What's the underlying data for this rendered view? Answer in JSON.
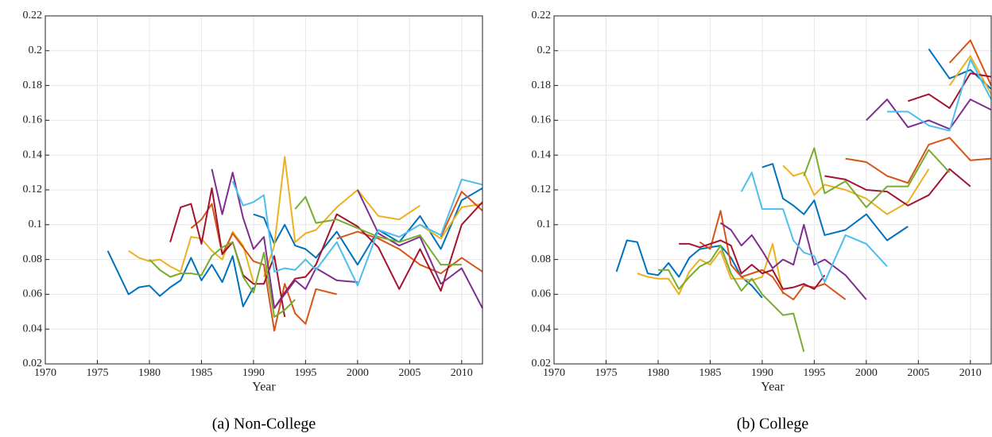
{
  "chart_data": [
    {
      "type": "line",
      "caption": "(a) Non-College",
      "xlabel": "Year",
      "xlim": [
        1970,
        2012
      ],
      "ylim": [
        0.02,
        0.22
      ],
      "xticks": [
        1970,
        1975,
        1980,
        1985,
        1990,
        1995,
        2000,
        2005,
        2010
      ],
      "yticks": [
        0.02,
        0.04,
        0.06,
        0.08,
        0.1,
        0.12,
        0.14,
        0.16,
        0.18,
        0.2,
        0.22
      ],
      "grid": true,
      "series": [
        {
          "color": "#0072BD",
          "x": [
            1976,
            1978,
            1979,
            1980,
            1981,
            1982,
            1983,
            1984,
            1985,
            1986,
            1987,
            1988,
            1989,
            1990
          ],
          "values": [
            0.085,
            0.06,
            0.064,
            0.065,
            0.059,
            0.064,
            0.068,
            0.081,
            0.068,
            0.077,
            0.067,
            0.082,
            0.053,
            0.064
          ]
        },
        {
          "color": "#0072BD",
          "x": [
            1990,
            1991,
            1992,
            1993,
            1994,
            1995,
            1996,
            1998,
            2000,
            2002,
            2004,
            2006,
            2008,
            2010,
            2012
          ],
          "values": [
            0.106,
            0.104,
            0.089,
            0.1,
            0.088,
            0.086,
            0.081,
            0.096,
            0.077,
            0.097,
            0.09,
            0.105,
            0.086,
            0.114,
            0.121
          ]
        },
        {
          "color": "#EDB120",
          "x": [
            1978,
            1979,
            1980,
            1981,
            1982,
            1983,
            1984,
            1985,
            1986,
            1987,
            1988,
            1989,
            1990
          ],
          "values": [
            0.085,
            0.081,
            0.079,
            0.08,
            0.076,
            0.073,
            0.093,
            0.092,
            0.085,
            0.08,
            0.096,
            0.088,
            0.067
          ]
        },
        {
          "color": "#EDB120",
          "x": [
            1991,
            1992,
            1993,
            1994,
            1995,
            1996,
            1998,
            2000,
            2002,
            2004,
            2006
          ],
          "values": [
            0.07,
            0.088,
            0.139,
            0.09,
            0.095,
            0.097,
            0.11,
            0.12,
            0.105,
            0.103,
            0.111
          ]
        },
        {
          "color": "#EDB120",
          "x": [
            2006,
            2008,
            2010,
            2012
          ],
          "values": [
            0.1,
            0.092,
            0.11,
            0.112
          ]
        },
        {
          "color": "#D95319",
          "x": [
            1984,
            1985,
            1986,
            1987,
            1988,
            1989,
            1990,
            1991,
            1992,
            1993,
            1994,
            1995,
            1996,
            1998
          ],
          "values": [
            0.098,
            0.103,
            0.112,
            0.083,
            0.095,
            0.087,
            0.079,
            0.077,
            0.039,
            0.066,
            0.049,
            0.043,
            0.063,
            0.06
          ]
        },
        {
          "color": "#D95319",
          "x": [
            1998,
            2000,
            2002,
            2004,
            2006,
            2008,
            2010,
            2012
          ],
          "values": [
            0.092,
            0.096,
            0.092,
            0.086,
            0.077,
            0.072,
            0.081,
            0.073
          ]
        },
        {
          "color": "#D95319",
          "x": [
            2008,
            2010,
            2012
          ],
          "values": [
            0.093,
            0.119,
            0.108
          ]
        },
        {
          "color": "#A2142F",
          "x": [
            1982,
            1983,
            1984,
            1985,
            1986,
            1987,
            1988,
            1989,
            1990,
            1991,
            1992,
            1993
          ],
          "values": [
            0.09,
            0.11,
            0.112,
            0.089,
            0.121,
            0.083,
            0.09,
            0.071,
            0.066,
            0.066,
            0.082,
            0.047
          ]
        },
        {
          "color": "#A2142F",
          "x": [
            1992,
            1993,
            1994,
            1995,
            1996,
            1998,
            2000,
            2002,
            2004,
            2006,
            2008,
            2010,
            2012
          ],
          "values": [
            0.052,
            0.061,
            0.069,
            0.07,
            0.077,
            0.106,
            0.099,
            0.087,
            0.063,
            0.086,
            0.062,
            0.1,
            0.113
          ]
        },
        {
          "color": "#7E2F8E",
          "x": [
            1986,
            1987,
            1988,
            1989,
            1990,
            1991,
            1992,
            1993,
            1994,
            1995,
            1996,
            1998,
            2000
          ],
          "values": [
            0.132,
            0.106,
            0.13,
            0.104,
            0.086,
            0.093,
            0.052,
            0.06,
            0.068,
            0.063,
            0.075,
            0.068,
            0.067
          ]
        },
        {
          "color": "#7E2F8E",
          "x": [
            2000,
            2002,
            2004,
            2006,
            2008,
            2010,
            2012
          ],
          "values": [
            0.12,
            0.095,
            0.088,
            0.093,
            0.066,
            0.075,
            0.052
          ]
        },
        {
          "color": "#77AC30",
          "x": [
            1980,
            1981,
            1982,
            1983,
            1984,
            1985,
            1986,
            1987,
            1988,
            1989,
            1990,
            1991,
            1992,
            1993,
            1994
          ],
          "values": [
            0.08,
            0.074,
            0.07,
            0.072,
            0.072,
            0.071,
            0.082,
            0.087,
            0.09,
            0.07,
            0.061,
            0.084,
            0.047,
            0.051,
            0.057
          ]
        },
        {
          "color": "#77AC30",
          "x": [
            1994,
            1995,
            1996,
            1998,
            2000,
            2002,
            2004,
            2006,
            2008,
            2010
          ],
          "values": [
            0.109,
            0.116,
            0.101,
            0.103,
            0.098,
            0.093,
            0.09,
            0.094,
            0.077,
            0.077
          ]
        },
        {
          "color": "#4DBEEE",
          "x": [
            1988,
            1989,
            1990,
            1991,
            1992,
            1993,
            1994,
            1995,
            1996,
            1998,
            2000,
            2002,
            2004,
            2006,
            2008,
            2010,
            2012
          ],
          "values": [
            0.125,
            0.111,
            0.113,
            0.117,
            0.073,
            0.075,
            0.074,
            0.08,
            0.074,
            0.09,
            0.065,
            0.097,
            0.093,
            0.1,
            0.094,
            0.126,
            0.123
          ]
        }
      ]
    },
    {
      "type": "line",
      "caption": "(b) College",
      "xlabel": "Year",
      "xlim": [
        1970,
        2012
      ],
      "ylim": [
        0.02,
        0.22
      ],
      "xticks": [
        1970,
        1975,
        1980,
        1985,
        1990,
        1995,
        2000,
        2005,
        2010
      ],
      "yticks": [
        0.02,
        0.04,
        0.06,
        0.08,
        0.1,
        0.12,
        0.14,
        0.16,
        0.18,
        0.2,
        0.22
      ],
      "grid": true,
      "series": [
        {
          "color": "#0072BD",
          "x": [
            1976,
            1977,
            1978,
            1979,
            1980,
            1981,
            1982,
            1983,
            1984,
            1985,
            1986,
            1987,
            1988,
            1989,
            1990
          ],
          "values": [
            0.073,
            0.091,
            0.09,
            0.072,
            0.071,
            0.078,
            0.07,
            0.081,
            0.086,
            0.087,
            0.088,
            0.081,
            0.07,
            0.065,
            0.058
          ]
        },
        {
          "color": "#0072BD",
          "x": [
            1990,
            1991,
            1992,
            1993,
            1994,
            1995,
            1996,
            1998,
            2000,
            2002,
            2004
          ],
          "values": [
            0.133,
            0.135,
            0.115,
            0.111,
            0.106,
            0.114,
            0.094,
            0.097,
            0.106,
            0.091,
            0.099
          ]
        },
        {
          "color": "#0072BD",
          "x": [
            2006,
            2008,
            2010,
            2012
          ],
          "values": [
            0.201,
            0.184,
            0.189,
            0.178
          ]
        },
        {
          "color": "#EDB120",
          "x": [
            1978,
            1979,
            1980,
            1981,
            1982,
            1983,
            1984,
            1985,
            1986,
            1987,
            1988,
            1989,
            1990,
            1991,
            1992
          ],
          "values": [
            0.072,
            0.07,
            0.069,
            0.069,
            0.06,
            0.073,
            0.08,
            0.077,
            0.085,
            0.069,
            0.069,
            0.068,
            0.07,
            0.089,
            0.06
          ]
        },
        {
          "color": "#EDB120",
          "x": [
            1992,
            1993,
            1994,
            1995,
            1996,
            1998,
            2000,
            2002,
            2004,
            2006
          ],
          "values": [
            0.134,
            0.128,
            0.13,
            0.117,
            0.123,
            0.12,
            0.115,
            0.106,
            0.113,
            0.132
          ]
        },
        {
          "color": "#EDB120",
          "x": [
            2008,
            2010,
            2012
          ],
          "values": [
            0.18,
            0.197,
            0.175
          ]
        },
        {
          "color": "#D95319",
          "x": [
            1984,
            1985,
            1986,
            1987,
            1988,
            1989,
            1990,
            1991,
            1992,
            1993,
            1994,
            1995,
            1996,
            1998
          ],
          "values": [
            0.09,
            0.086,
            0.108,
            0.077,
            0.07,
            0.072,
            0.074,
            0.07,
            0.061,
            0.057,
            0.065,
            0.064,
            0.066,
            0.057
          ]
        },
        {
          "color": "#D95319",
          "x": [
            1998,
            2000,
            2002,
            2004,
            2006,
            2008,
            2010,
            2012
          ],
          "values": [
            0.138,
            0.136,
            0.128,
            0.124,
            0.146,
            0.15,
            0.137,
            0.138
          ]
        },
        {
          "color": "#D95319",
          "x": [
            2008,
            2010,
            2012
          ],
          "values": [
            0.193,
            0.206,
            0.18
          ]
        },
        {
          "color": "#A2142F",
          "x": [
            1982,
            1983,
            1984,
            1985,
            1986,
            1987,
            1988,
            1989,
            1990,
            1991,
            1992,
            1993,
            1994,
            1995,
            1996
          ],
          "values": [
            0.089,
            0.089,
            0.087,
            0.089,
            0.091,
            0.088,
            0.072,
            0.077,
            0.072,
            0.074,
            0.063,
            0.064,
            0.066,
            0.063,
            0.071
          ]
        },
        {
          "color": "#A2142F",
          "x": [
            1996,
            1998,
            2000,
            2002,
            2004,
            2006,
            2008,
            2010
          ],
          "values": [
            0.128,
            0.126,
            0.12,
            0.119,
            0.111,
            0.117,
            0.132,
            0.122
          ]
        },
        {
          "color": "#A2142F",
          "x": [
            2004,
            2006,
            2008,
            2010,
            2012
          ],
          "values": [
            0.171,
            0.175,
            0.167,
            0.187,
            0.185
          ]
        },
        {
          "color": "#7E2F8E",
          "x": [
            1986,
            1987,
            1988,
            1989,
            1990,
            1991,
            1992,
            1993,
            1994,
            1995,
            1996,
            1998,
            2000
          ],
          "values": [
            0.101,
            0.097,
            0.088,
            0.094,
            0.085,
            0.075,
            0.08,
            0.077,
            0.1,
            0.077,
            0.08,
            0.071,
            0.057
          ]
        },
        {
          "color": "#7E2F8E",
          "x": [
            2000,
            2002,
            2004,
            2006,
            2008,
            2010,
            2012
          ],
          "values": [
            0.16,
            0.172,
            0.156,
            0.16,
            0.155,
            0.172,
            0.166
          ]
        },
        {
          "color": "#77AC30",
          "x": [
            1980,
            1981,
            1982,
            1983,
            1984,
            1985,
            1986,
            1987,
            1988,
            1989,
            1990,
            1991,
            1992,
            1993,
            1994
          ],
          "values": [
            0.074,
            0.074,
            0.063,
            0.07,
            0.076,
            0.079,
            0.088,
            0.072,
            0.062,
            0.069,
            0.06,
            0.054,
            0.048,
            0.049,
            0.027
          ]
        },
        {
          "color": "#77AC30",
          "x": [
            1994,
            1995,
            1996,
            1998,
            2000,
            2002,
            2004,
            2006,
            2008
          ],
          "values": [
            0.128,
            0.144,
            0.118,
            0.125,
            0.11,
            0.122,
            0.122,
            0.143,
            0.13
          ]
        },
        {
          "color": "#4DBEEE",
          "x": [
            1988,
            1989,
            1990,
            1991,
            1992,
            1993,
            1994,
            1995,
            1996,
            1998,
            2000,
            2002
          ],
          "values": [
            0.119,
            0.13,
            0.109,
            0.109,
            0.109,
            0.091,
            0.084,
            0.082,
            0.067,
            0.094,
            0.089,
            0.076
          ]
        },
        {
          "color": "#4DBEEE",
          "x": [
            2002,
            2004,
            2006,
            2008,
            2010,
            2012
          ],
          "values": [
            0.165,
            0.165,
            0.157,
            0.154,
            0.195,
            0.172
          ]
        }
      ]
    }
  ]
}
